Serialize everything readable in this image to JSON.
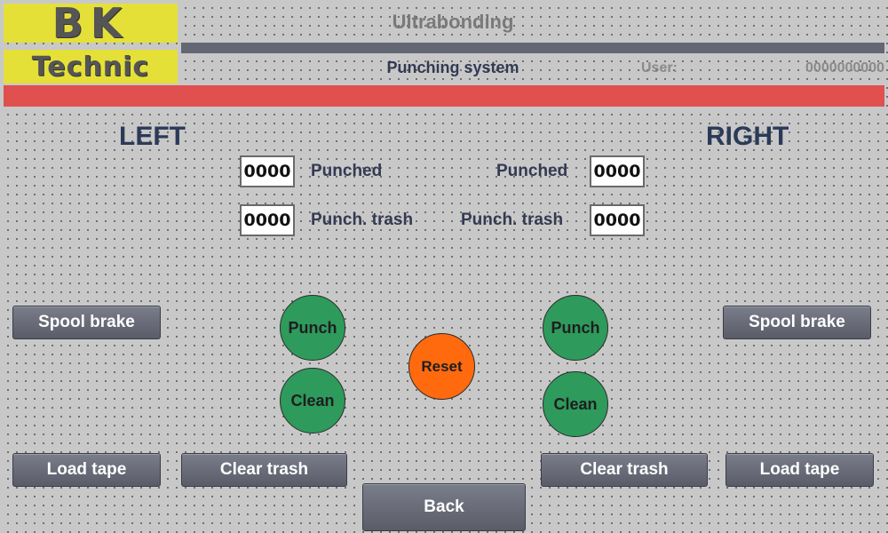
{
  "header": {
    "logo_line1": "BK",
    "logo_line2": "Technic",
    "title": "Ultrabonding",
    "subtitle": "Punching system",
    "user_label": "User:",
    "user_value": "0000000000"
  },
  "left": {
    "title": "LEFT",
    "punched_value": "0000",
    "punched_label": "Punched",
    "trash_value": "0000",
    "trash_label": "Punch. trash",
    "spool_brake": "Spool brake",
    "load_tape": "Load tape",
    "clear_trash": "Clear trash",
    "punch": "Punch",
    "clean": "Clean"
  },
  "right": {
    "title": "RIGHT",
    "punched_value": "0000",
    "punched_label": "Punched",
    "trash_value": "0000",
    "trash_label": "Punch. trash",
    "spool_brake": "Spool brake",
    "load_tape": "Load tape",
    "clear_trash": "Clear trash",
    "punch": "Punch",
    "clean": "Clean"
  },
  "center": {
    "reset": "Reset",
    "back": "Back"
  },
  "colors": {
    "background": "#c8c8c8",
    "logo": "#e4e037",
    "alarm_bar": "#e0504f",
    "button": "#6a6c78",
    "green_indicator": "#2e9a5c",
    "reset": "#ff6a0f"
  }
}
